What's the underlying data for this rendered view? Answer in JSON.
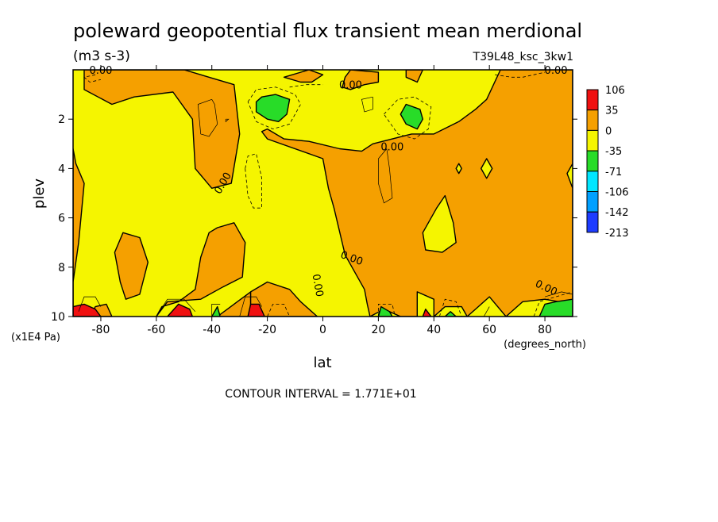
{
  "chart_data": {
    "type": "heatmap",
    "title": "poleward geopotential flux transient mean merdional",
    "units": "(m3 s-3)",
    "run_label": "T39L48_ksc_3kw1",
    "xlabel": "lat",
    "x_units": "(degrees_north)",
    "ylabel": "plev",
    "y_units": "(x1E4 Pa)",
    "xlim": [
      -90,
      90
    ],
    "ylim": [
      10,
      0
    ],
    "x_ticks": [
      "-80",
      "-60",
      "-40",
      "-20",
      "0",
      "20",
      "40",
      "60",
      "80"
    ],
    "x_tick_values": [
      -80,
      -60,
      -40,
      -20,
      0,
      20,
      40,
      60,
      80
    ],
    "y_ticks": [
      "2",
      "4",
      "6",
      "8",
      "10"
    ],
    "y_tick_values": [
      2,
      4,
      6,
      8,
      10
    ],
    "contour_labels": [
      "0.00",
      "0.00",
      "0.00",
      "0.00",
      "0.00",
      "0.00",
      "0.00",
      "0.00"
    ],
    "footer": "CONTOUR INTERVAL = 1.771E+01",
    "legend": {
      "labels": [
        "106",
        "35",
        "0",
        "-35",
        "-71",
        "-106",
        "-142",
        "-213"
      ],
      "colors": [
        "#f01010",
        "#f5a000",
        "#f5f500",
        "#28dc28",
        "#00e6ff",
        "#00a0ff",
        "#1e3cff"
      ]
    },
    "regions": [
      {
        "name": "orange",
        "color": "#f5a000",
        "polygons": [
          [
            [
              -90,
              10
            ],
            [
              -90,
              8.6
            ],
            [
              -88,
              7.0
            ],
            [
              -86,
              4.6
            ],
            [
              -89,
              3.8
            ],
            [
              -90,
              3.2
            ],
            [
              -90,
              10
            ]
          ],
          [
            [
              -86,
              0
            ],
            [
              -50,
              0
            ],
            [
              -32,
              0.6
            ],
            [
              -30,
              2.6
            ],
            [
              -33,
              4.6
            ],
            [
              -40,
              4.8
            ],
            [
              -46,
              4.0
            ],
            [
              -47,
              2.0
            ],
            [
              -54,
              0.9
            ],
            [
              -68,
              1.1
            ],
            [
              -76,
              1.4
            ],
            [
              -86,
              0.8
            ]
          ],
          [
            [
              -73,
              8.6
            ],
            [
              -75,
              7.4
            ],
            [
              -72,
              6.6
            ],
            [
              -66,
              6.8
            ],
            [
              -63,
              7.8
            ],
            [
              -66,
              9.1
            ],
            [
              -71,
              9.3
            ]
          ],
          [
            [
              -84,
              10
            ],
            [
              -82,
              9.6
            ],
            [
              -78,
              9.5
            ],
            [
              -76,
              10
            ]
          ],
          [
            [
              -60,
              10
            ],
            [
              -56,
              9.4
            ],
            [
              -44,
              9.3
            ],
            [
              -36,
              8.8
            ],
            [
              -29,
              8.4
            ],
            [
              -28,
              7.0
            ],
            [
              -32,
              6.2
            ],
            [
              -38,
              6.4
            ],
            [
              -41,
              6.6
            ],
            [
              -44,
              7.6
            ],
            [
              -46,
              8.9
            ],
            [
              -52,
              9.4
            ],
            [
              -58,
              9.6
            ],
            [
              -60,
              10
            ]
          ],
          [
            [
              -38,
              10
            ],
            [
              -32,
              9.5
            ],
            [
              -26,
              9.0
            ],
            [
              -26,
              10
            ]
          ],
          [
            [
              -26,
              10
            ],
            [
              -26,
              9.0
            ],
            [
              -20,
              8.6
            ],
            [
              -12,
              8.9
            ],
            [
              -8,
              9.4
            ],
            [
              -2,
              10
            ]
          ],
          [
            [
              -5,
              0
            ],
            [
              0,
              0.2
            ],
            [
              -4,
              0.5
            ],
            [
              -8,
              0.5
            ],
            [
              -14,
              0.3
            ]
          ],
          [
            [
              10,
              0
            ],
            [
              20,
              0.1
            ],
            [
              20,
              0.5
            ],
            [
              15,
              0.6
            ],
            [
              10,
              0.8
            ],
            [
              7,
              0.7
            ],
            [
              8,
              0.3
            ]
          ],
          [
            [
              30,
              0
            ],
            [
              36,
              0
            ],
            [
              34,
              0.5
            ],
            [
              30,
              0.3
            ]
          ],
          [
            [
              64,
              0
            ],
            [
              90,
              0
            ],
            [
              90,
              3.8
            ],
            [
              88,
              4.2
            ],
            [
              90,
              4.8
            ],
            [
              90,
              10
            ],
            [
              66,
              10
            ],
            [
              60,
              9.2
            ],
            [
              56,
              9.6
            ],
            [
              52,
              10
            ],
            [
              40,
              10
            ],
            [
              40,
              9.3
            ],
            [
              34,
              9.0
            ],
            [
              34,
              10
            ],
            [
              17,
              10
            ],
            [
              16,
              9.5
            ],
            [
              15,
              8.9
            ],
            [
              8,
              7.5
            ],
            [
              4,
              5.6
            ],
            [
              2,
              4.8
            ],
            [
              0,
              3.6
            ],
            [
              -20,
              2.8
            ],
            [
              -22,
              2.5
            ],
            [
              -20,
              2.4
            ],
            [
              -14,
              2.8
            ],
            [
              -5,
              2.9
            ],
            [
              6,
              3.2
            ],
            [
              14,
              3.3
            ],
            [
              18,
              3.0
            ],
            [
              32,
              2.6
            ],
            [
              40,
              2.6
            ],
            [
              49,
              2.1
            ],
            [
              55,
              1.6
            ],
            [
              59,
              1.2
            ],
            [
              64,
              0
            ]
          ]
        ]
      },
      {
        "name": "yellow",
        "color": "#f5f500",
        "polygons": [
          [
            [
              36,
              6.6
            ],
            [
              41,
              5.6
            ],
            [
              44,
              5.1
            ],
            [
              47,
              6.2
            ],
            [
              48,
              7.0
            ],
            [
              43,
              7.4
            ],
            [
              37,
              7.3
            ]
          ],
          [
            [
              59,
              3.6
            ],
            [
              61,
              4.0
            ],
            [
              59,
              4.4
            ],
            [
              57,
              4.0
            ]
          ],
          [
            [
              49,
              3.8
            ],
            [
              50,
              4.0
            ],
            [
              49,
              4.2
            ],
            [
              48,
              4.0
            ]
          ],
          [
            [
              17,
              10
            ],
            [
              22,
              9.7
            ],
            [
              28,
              10
            ]
          ],
          [
            [
              40,
              10
            ],
            [
              44,
              9.6
            ],
            [
              50,
              9.6
            ],
            [
              52,
              10
            ]
          ],
          [
            [
              66,
              10
            ],
            [
              72,
              9.4
            ],
            [
              80,
              9.3
            ],
            [
              90,
              9.5
            ],
            [
              90,
              10
            ]
          ]
        ]
      },
      {
        "name": "green",
        "color": "#28dc28",
        "polygons": [
          [
            [
              -24,
              1.3
            ],
            [
              -22,
              1.1
            ],
            [
              -17,
              1.0
            ],
            [
              -12,
              1.2
            ],
            [
              -13,
              1.8
            ],
            [
              -16,
              2.1
            ],
            [
              -20,
              2.0
            ],
            [
              -24,
              1.7
            ]
          ],
          [
            [
              28,
              1.8
            ],
            [
              30,
              1.4
            ],
            [
              35,
              1.6
            ],
            [
              36,
              2.0
            ],
            [
              34,
              2.4
            ],
            [
              30,
              2.2
            ]
          ],
          [
            [
              -40,
              10
            ],
            [
              -38,
              9.6
            ],
            [
              -37,
              10
            ]
          ],
          [
            [
              20,
              10
            ],
            [
              21,
              9.6
            ],
            [
              24,
              9.8
            ],
            [
              25,
              10
            ]
          ],
          [
            [
              44,
              10
            ],
            [
              46,
              9.8
            ],
            [
              48,
              10
            ]
          ],
          [
            [
              78,
              10
            ],
            [
              80,
              9.5
            ],
            [
              84,
              9.4
            ],
            [
              90,
              9.3
            ],
            [
              90,
              10
            ]
          ]
        ]
      },
      {
        "name": "red",
        "color": "#f01010",
        "polygons": [
          [
            [
              -90,
              10
            ],
            [
              -90,
              9.6
            ],
            [
              -86,
              9.5
            ],
            [
              -82,
              9.7
            ],
            [
              -80,
              10
            ]
          ],
          [
            [
              -56,
              10
            ],
            [
              -52,
              9.5
            ],
            [
              -48,
              9.7
            ],
            [
              -47,
              10
            ]
          ],
          [
            [
              -27,
              10
            ],
            [
              -26,
              9.5
            ],
            [
              -23,
              9.5
            ],
            [
              -21,
              10
            ]
          ],
          [
            [
              36,
              10
            ],
            [
              37,
              9.7
            ],
            [
              39,
              10
            ]
          ]
        ]
      }
    ],
    "thin_contours": [
      [
        [
          -40,
          1.2
        ],
        [
          -45,
          1.4
        ],
        [
          -44,
          2.6
        ],
        [
          -41,
          2.7
        ],
        [
          -38,
          2.2
        ],
        [
          -39,
          1.4
        ],
        [
          -40,
          1.2
        ]
      ],
      [
        [
          -35,
          2.0
        ],
        [
          -34,
          2.0
        ],
        [
          -35,
          2.1
        ],
        [
          -35,
          2.0
        ]
      ],
      [
        [
          18,
          1.1
        ],
        [
          14,
          1.2
        ],
        [
          15,
          1.7
        ],
        [
          18,
          1.6
        ],
        [
          18,
          1.1
        ]
      ],
      [
        [
          23,
          3.2
        ],
        [
          20,
          3.6
        ],
        [
          20,
          4.6
        ],
        [
          22,
          5.4
        ],
        [
          25,
          5.2
        ],
        [
          24,
          4.0
        ],
        [
          23,
          3.2
        ]
      ],
      [
        [
          -88,
          9.8
        ],
        [
          -86,
          9.2
        ],
        [
          -82,
          9.2
        ],
        [
          -80,
          9.6
        ]
      ],
      [
        [
          -60,
          10
        ],
        [
          -56,
          9.3
        ],
        [
          -50,
          9.3
        ],
        [
          -46,
          9.8
        ]
      ],
      [
        [
          -40,
          10
        ],
        [
          -40,
          9.5
        ],
        [
          -37,
          9.5
        ]
      ],
      [
        [
          -30,
          10
        ],
        [
          -28,
          9.2
        ],
        [
          -24,
          9.2
        ],
        [
          -22,
          9.6
        ]
      ],
      [
        [
          58,
          10
        ],
        [
          60,
          9.6
        ]
      ],
      [
        [
          80,
          9.2
        ],
        [
          86,
          9.0
        ],
        [
          90,
          9.1
        ]
      ]
    ],
    "dashed_contours": [
      [
        [
          -82,
          0.2
        ],
        [
          -86,
          0.3
        ],
        [
          -84,
          0.5
        ],
        [
          -80,
          0.4
        ]
      ],
      [
        [
          -27,
          1.3
        ],
        [
          -24,
          0.8
        ],
        [
          -17,
          0.7
        ],
        [
          -10,
          1.0
        ],
        [
          -8,
          1.4
        ],
        [
          -12,
          2.2
        ],
        [
          -18,
          2.4
        ],
        [
          -24,
          2.1
        ],
        [
          -27,
          1.3
        ]
      ],
      [
        [
          -12,
          0.7
        ],
        [
          -6,
          0.6
        ],
        [
          0,
          0.6
        ]
      ],
      [
        [
          22,
          1.8
        ],
        [
          27,
          1.2
        ],
        [
          33,
          1.1
        ],
        [
          39,
          1.5
        ],
        [
          38,
          2.4
        ],
        [
          33,
          2.8
        ],
        [
          27,
          2.6
        ],
        [
          22,
          1.8
        ]
      ],
      [
        [
          -28,
          4.0
        ],
        [
          -27,
          3.5
        ],
        [
          -24,
          3.4
        ],
        [
          -22,
          4.4
        ],
        [
          -22,
          5.6
        ],
        [
          -25,
          5.6
        ],
        [
          -27,
          5.1
        ],
        [
          -28,
          4.0
        ]
      ],
      [
        [
          62,
          0.2
        ],
        [
          68,
          0.3
        ],
        [
          72,
          0.3
        ],
        [
          80,
          0.1
        ]
      ],
      [
        [
          -20,
          10
        ],
        [
          -18,
          9.5
        ],
        [
          -14,
          9.5
        ],
        [
          -12,
          10
        ]
      ],
      [
        [
          20,
          10
        ],
        [
          20,
          9.5
        ],
        [
          25,
          9.5
        ],
        [
          26,
          10
        ]
      ],
      [
        [
          42,
          10
        ],
        [
          44,
          9.3
        ],
        [
          48,
          9.4
        ],
        [
          50,
          10
        ]
      ],
      [
        [
          76,
          10
        ],
        [
          78,
          9.4
        ],
        [
          84,
          9.2
        ],
        [
          90,
          9.0
        ]
      ]
    ]
  }
}
